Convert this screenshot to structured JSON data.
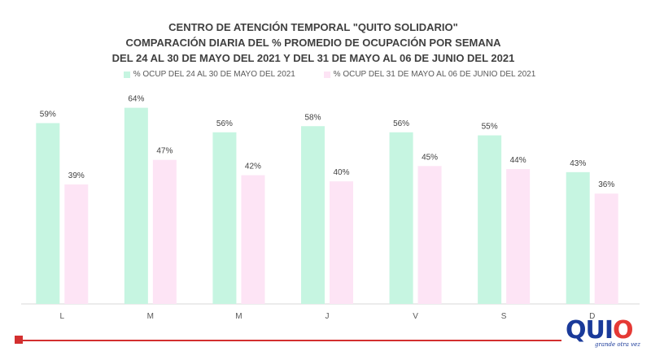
{
  "chart_data": {
    "type": "bar",
    "title_lines": [
      "CENTRO DE ATENCIÓN TEMPORAL \"QUITO SOLIDARIO\"",
      "COMPARACIÓN  DIARIA DEL %  PROMEDIO DE OCUPACIÓN POR SEMANA",
      "DEL 24 AL 30 DE MAYO DEL 2021 Y DEL 31 DE MAYO AL 06 DE JUNIO DEL 2021"
    ],
    "categories": [
      "L",
      "M",
      "M",
      "J",
      "V",
      "S",
      "D"
    ],
    "series": [
      {
        "name": "% OCUP DEL 24 AL 30 DE MAYO DEL  2021",
        "values": [
          59,
          64,
          56,
          58,
          56,
          55,
          43
        ],
        "labels": [
          "59%",
          "64%",
          "56%",
          "58%",
          "56%",
          "55%",
          "43%"
        ],
        "color": "#c6f5e1"
      },
      {
        "name": "% OCUP DEL 31 DE MAYO AL 06 DE JUNIO DEL  2021",
        "values": [
          39,
          47,
          42,
          40,
          45,
          44,
          36
        ],
        "labels": [
          "39%",
          "47%",
          "42%",
          "40%",
          "45%",
          "44%",
          "36%"
        ],
        "color": "#fde4f5"
      }
    ],
    "ylim": [
      0,
      70
    ],
    "grid": false,
    "legend_position": "top"
  },
  "logo": {
    "text_main": "QUI",
    "text_o": "O",
    "tagline": "grande otra vez"
  },
  "colors": {
    "accent_red": "#d32f2f",
    "logo_blue": "#1a3a9a"
  }
}
